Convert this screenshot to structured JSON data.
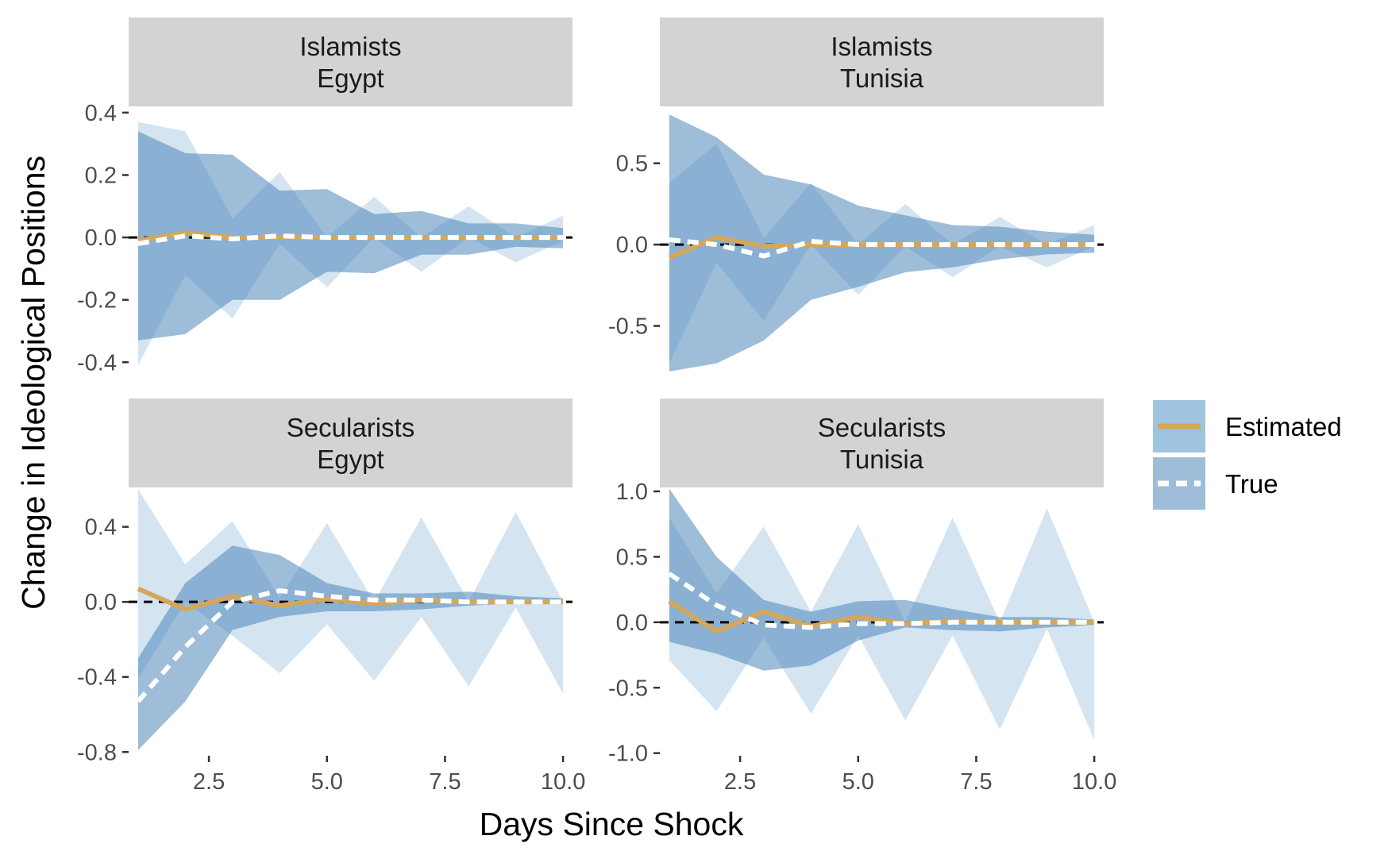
{
  "chart_data": {
    "type": "area",
    "xlabel": "Days Since Shock",
    "ylabel": "Change in Ideological Positions",
    "xlim": [
      0.8,
      10.2
    ],
    "x_ticks": [
      "2.5",
      "5.0",
      "7.5",
      "10.0"
    ],
    "x_tick_values": [
      2.5,
      5.0,
      7.5,
      10.0
    ],
    "x": [
      1,
      2,
      3,
      4,
      5,
      6,
      7,
      8,
      9,
      10
    ],
    "colors": {
      "estimated_band": "#9fc4df",
      "true_band": "#4d86ba",
      "estimated_line": "#d4a75a",
      "true_line": "#ffffff",
      "zero_line": "#000000",
      "strip_bg": "#d3d3d3"
    },
    "legend": {
      "position": "right",
      "items": [
        {
          "label": "Estimated",
          "line": "solid"
        },
        {
          "label": "True",
          "line": "dashed"
        }
      ]
    },
    "panels": [
      {
        "strip": [
          "Islamists",
          "Egypt"
        ],
        "ylim": [
          -0.44,
          0.42
        ],
        "y_ticks": [
          "-0.4",
          "-0.2",
          "0.0",
          "0.2",
          "0.4"
        ],
        "y_tick_values": [
          -0.4,
          -0.2,
          0.0,
          0.2,
          0.4
        ],
        "estimated_band": {
          "lower": [
            -0.41,
            -0.12,
            -0.26,
            -0.02,
            -0.16,
            0.0,
            -0.11,
            0.0,
            -0.08,
            -0.01
          ],
          "upper": [
            0.37,
            0.34,
            0.06,
            0.21,
            0.0,
            0.13,
            0.0,
            0.1,
            0.0,
            0.07
          ]
        },
        "true_band": {
          "lower": [
            -0.33,
            -0.31,
            -0.2,
            -0.2,
            -0.11,
            -0.115,
            -0.055,
            -0.055,
            -0.03,
            -0.035
          ],
          "upper": [
            0.34,
            0.27,
            0.265,
            0.15,
            0.155,
            0.075,
            0.085,
            0.045,
            0.045,
            0.03
          ]
        },
        "estimated_line": [
          -0.01,
          0.015,
          0.0,
          0.0,
          0.0,
          0.0,
          0.0,
          0.0,
          0.0,
          0.0
        ],
        "true_line": [
          -0.02,
          0.005,
          -0.005,
          0.005,
          0.0,
          0.0,
          0.0,
          0.0,
          0.0,
          0.0
        ]
      },
      {
        "strip": [
          "Islamists",
          "Tunisia"
        ],
        "ylim": [
          -0.8,
          0.85
        ],
        "y_ticks": [
          "-0.5",
          "0.0",
          "0.5"
        ],
        "y_tick_values": [
          -0.5,
          0.0,
          0.5
        ],
        "estimated_band": {
          "lower": [
            -0.73,
            -0.11,
            -0.47,
            0.0,
            -0.31,
            -0.01,
            -0.2,
            -0.01,
            -0.14,
            -0.01
          ],
          "upper": [
            0.38,
            0.62,
            0.04,
            0.38,
            0.0,
            0.25,
            0.0,
            0.17,
            0.0,
            0.12
          ]
        },
        "true_band": {
          "lower": [
            -0.78,
            -0.73,
            -0.59,
            -0.34,
            -0.26,
            -0.17,
            -0.14,
            -0.09,
            -0.06,
            -0.05
          ],
          "upper": [
            0.8,
            0.66,
            0.43,
            0.37,
            0.24,
            0.18,
            0.12,
            0.11,
            0.08,
            0.06
          ]
        },
        "estimated_line": [
          -0.08,
          0.045,
          -0.01,
          0.0,
          0.0,
          0.0,
          0.0,
          0.0,
          0.0,
          0.0
        ],
        "true_line": [
          0.03,
          0.0,
          -0.07,
          0.02,
          0.0,
          0.0,
          0.0,
          0.0,
          0.0,
          0.0
        ]
      },
      {
        "strip": [
          "Secularists",
          "Egypt"
        ],
        "ylim": [
          -0.82,
          0.61
        ],
        "y_ticks": [
          "-0.8",
          "-0.4",
          "0.0",
          "0.4"
        ],
        "y_tick_values": [
          -0.8,
          -0.4,
          0.0,
          0.4
        ],
        "estimated_band": {
          "lower": [
            -0.41,
            0.0,
            -0.18,
            -0.38,
            -0.12,
            -0.42,
            -0.08,
            -0.45,
            -0.03,
            -0.49
          ],
          "upper": [
            0.6,
            0.2,
            0.43,
            0.02,
            0.42,
            0.0,
            0.45,
            0.0,
            0.48,
            0.0
          ]
        },
        "true_band": {
          "lower": [
            -0.79,
            -0.53,
            -0.15,
            -0.08,
            -0.05,
            -0.05,
            -0.04,
            -0.02,
            -0.01,
            -0.01
          ],
          "upper": [
            -0.3,
            0.1,
            0.3,
            0.25,
            0.1,
            0.045,
            0.045,
            0.055,
            0.03,
            0.02
          ]
        },
        "estimated_line": [
          0.07,
          -0.04,
          0.03,
          -0.02,
          0.015,
          -0.01,
          0.01,
          0.0,
          0.0,
          0.0
        ],
        "true_line": [
          -0.53,
          -0.24,
          0.0,
          0.06,
          0.03,
          0.01,
          0.01,
          0.0,
          0.0,
          0.0
        ]
      },
      {
        "strip": [
          "Secularists",
          "Tunisia"
        ],
        "ylim": [
          -1.02,
          1.03
        ],
        "y_ticks": [
          "-1.0",
          "-0.5",
          "0.0",
          "0.5",
          "1.0"
        ],
        "y_tick_values": [
          -1.0,
          -0.5,
          0.0,
          0.5,
          1.0
        ],
        "estimated_band": {
          "lower": [
            -0.29,
            -0.68,
            -0.12,
            -0.7,
            -0.1,
            -0.75,
            -0.1,
            -0.82,
            -0.05,
            -0.9
          ],
          "upper": [
            0.8,
            0.22,
            0.73,
            0.08,
            0.75,
            0.0,
            0.8,
            0.0,
            0.87,
            0.0
          ]
        },
        "true_band": {
          "lower": [
            -0.15,
            -0.24,
            -0.37,
            -0.33,
            -0.14,
            -0.04,
            -0.06,
            -0.07,
            -0.04,
            -0.02
          ],
          "upper": [
            1.02,
            0.5,
            0.17,
            0.08,
            0.16,
            0.17,
            0.1,
            0.04,
            0.04,
            0.02
          ]
        },
        "estimated_line": [
          0.16,
          -0.07,
          0.08,
          -0.03,
          0.04,
          -0.01,
          0.01,
          0.0,
          0.0,
          0.0
        ],
        "true_line": [
          0.37,
          0.13,
          -0.02,
          -0.04,
          -0.01,
          -0.01,
          0.0,
          0.0,
          0.0,
          0.0
        ]
      }
    ]
  }
}
